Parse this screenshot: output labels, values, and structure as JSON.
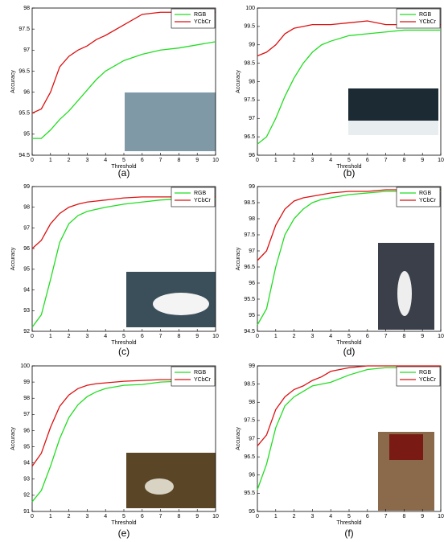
{
  "chart_data": [
    {
      "type": "line",
      "caption": "(a)",
      "xlabel": "Threshold",
      "ylabel": "Accuracy",
      "legend": "upper right",
      "x": [
        0,
        0.5,
        1,
        1.5,
        2,
        2.5,
        3,
        3.5,
        4,
        5,
        6,
        7,
        8,
        10
      ],
      "xlim": [
        0,
        10
      ],
      "xticks": [
        0,
        1,
        2,
        3,
        4,
        5,
        6,
        7,
        8,
        9,
        10
      ],
      "ylim": [
        94.5,
        98
      ],
      "yticks": [
        94.5,
        95,
        95.5,
        96,
        96.5,
        97,
        97.5,
        98
      ],
      "series": [
        {
          "name": "RGB",
          "color": "#22dd22",
          "values": [
            94.9,
            94.9,
            95.1,
            95.35,
            95.55,
            95.8,
            96.05,
            96.3,
            96.5,
            96.75,
            96.9,
            97.0,
            97.05,
            97.2
          ]
        },
        {
          "name": "YCbCr",
          "color": "#dd1111",
          "values": [
            95.5,
            95.6,
            96.0,
            96.6,
            96.85,
            97.0,
            97.1,
            97.25,
            97.35,
            97.6,
            97.85,
            97.9,
            97.9,
            97.9
          ]
        }
      ]
    },
    {
      "type": "line",
      "caption": "(b)",
      "xlabel": "Threshold",
      "ylabel": "Accuracy",
      "legend": "upper right",
      "x": [
        0,
        0.5,
        1,
        1.5,
        2,
        2.5,
        3,
        3.5,
        4,
        5,
        6,
        7,
        8,
        10
      ],
      "xlim": [
        0,
        10
      ],
      "xticks": [
        0,
        1,
        2,
        3,
        4,
        5,
        6,
        7,
        8,
        9,
        10
      ],
      "ylim": [
        96,
        100
      ],
      "yticks": [
        96,
        96.5,
        97,
        97.5,
        98,
        98.5,
        99,
        99.5,
        100
      ],
      "series": [
        {
          "name": "RGB",
          "color": "#22dd22",
          "values": [
            96.3,
            96.5,
            97.0,
            97.6,
            98.1,
            98.5,
            98.8,
            99.0,
            99.1,
            99.25,
            99.3,
            99.35,
            99.4,
            99.4
          ]
        },
        {
          "name": "YCbCr",
          "color": "#dd1111",
          "values": [
            98.7,
            98.8,
            99.0,
            99.3,
            99.45,
            99.5,
            99.55,
            99.55,
            99.55,
            99.6,
            99.65,
            99.55,
            99.55,
            99.55
          ]
        }
      ]
    },
    {
      "type": "line",
      "caption": "(c)",
      "xlabel": "Threshold",
      "ylabel": "Accuracy",
      "legend": "upper right",
      "x": [
        0,
        0.5,
        1,
        1.5,
        2,
        2.5,
        3,
        3.5,
        4,
        5,
        6,
        7,
        8,
        10
      ],
      "xlim": [
        0,
        10
      ],
      "xticks": [
        0,
        1,
        2,
        3,
        4,
        5,
        6,
        7,
        8,
        9,
        10
      ],
      "ylim": [
        92,
        99
      ],
      "yticks": [
        92,
        93,
        94,
        95,
        96,
        97,
        98,
        99
      ],
      "series": [
        {
          "name": "RGB",
          "color": "#22dd22",
          "values": [
            92.2,
            92.8,
            94.5,
            96.3,
            97.2,
            97.6,
            97.8,
            97.9,
            98.0,
            98.15,
            98.25,
            98.35,
            98.4,
            98.4
          ]
        },
        {
          "name": "YCbCr",
          "color": "#dd1111",
          "values": [
            96.0,
            96.4,
            97.2,
            97.7,
            98.0,
            98.15,
            98.25,
            98.3,
            98.35,
            98.45,
            98.5,
            98.5,
            98.5,
            98.5
          ]
        }
      ]
    },
    {
      "type": "line",
      "caption": "(d)",
      "xlabel": "Threshold",
      "ylabel": "Accuracy",
      "legend": "upper right",
      "x": [
        0,
        0.5,
        1,
        1.5,
        2,
        2.5,
        3,
        3.5,
        4,
        5,
        6,
        7,
        8,
        10
      ],
      "xlim": [
        0,
        10
      ],
      "xticks": [
        0,
        1,
        2,
        3,
        4,
        5,
        6,
        7,
        8,
        9,
        10
      ],
      "ylim": [
        94.5,
        99
      ],
      "yticks": [
        94.5,
        95,
        95.5,
        96,
        96.5,
        97,
        97.5,
        98,
        98.5,
        99
      ],
      "series": [
        {
          "name": "RGB",
          "color": "#22dd22",
          "values": [
            94.7,
            95.2,
            96.5,
            97.5,
            98.0,
            98.3,
            98.5,
            98.6,
            98.65,
            98.75,
            98.8,
            98.85,
            98.85,
            98.85
          ]
        },
        {
          "name": "YCbCr",
          "color": "#dd1111",
          "values": [
            96.7,
            97.0,
            97.8,
            98.3,
            98.55,
            98.65,
            98.7,
            98.75,
            98.8,
            98.85,
            98.85,
            98.9,
            98.9,
            98.9
          ]
        }
      ]
    },
    {
      "type": "line",
      "caption": "(e)",
      "xlabel": "Threshold",
      "ylabel": "Accuracy",
      "legend": "upper right",
      "x": [
        0,
        0.5,
        1,
        1.5,
        2,
        2.5,
        3,
        3.5,
        4,
        5,
        6,
        7,
        8,
        10
      ],
      "xlim": [
        0,
        10
      ],
      "xticks": [
        0,
        1,
        2,
        3,
        4,
        5,
        6,
        7,
        8,
        9,
        10
      ],
      "ylim": [
        91,
        100
      ],
      "yticks": [
        91,
        92,
        93,
        94,
        95,
        96,
        97,
        98,
        99,
        100
      ],
      "series": [
        {
          "name": "RGB",
          "color": "#22dd22",
          "values": [
            91.6,
            92.3,
            93.8,
            95.5,
            96.8,
            97.6,
            98.1,
            98.4,
            98.6,
            98.8,
            98.85,
            99.0,
            99.05,
            99.1
          ]
        },
        {
          "name": "YCbCr",
          "color": "#dd1111",
          "values": [
            93.8,
            94.6,
            96.2,
            97.5,
            98.2,
            98.6,
            98.8,
            98.9,
            98.95,
            99.05,
            99.1,
            99.15,
            99.15,
            99.15
          ]
        }
      ]
    },
    {
      "type": "line",
      "caption": "(f)",
      "xlabel": "Threshold",
      "ylabel": "Accuracy",
      "legend": "upper right",
      "x": [
        0,
        0.5,
        1,
        1.5,
        2,
        2.5,
        3,
        3.5,
        4,
        5,
        6,
        7,
        8,
        10
      ],
      "xlim": [
        0,
        10
      ],
      "xticks": [
        0,
        1,
        2,
        3,
        4,
        5,
        6,
        7,
        8,
        9,
        10
      ],
      "ylim": [
        95,
        99
      ],
      "yticks": [
        95,
        95.5,
        96,
        96.5,
        97,
        97.5,
        98,
        98.5,
        99
      ],
      "series": [
        {
          "name": "RGB",
          "color": "#22dd22",
          "values": [
            95.6,
            96.3,
            97.3,
            97.9,
            98.15,
            98.3,
            98.45,
            98.5,
            98.55,
            98.75,
            98.9,
            98.95,
            98.95,
            98.95
          ]
        },
        {
          "name": "YCbCr",
          "color": "#dd1111",
          "values": [
            96.8,
            97.1,
            97.8,
            98.15,
            98.35,
            98.45,
            98.6,
            98.7,
            98.85,
            98.95,
            99.0,
            99.0,
            99.0,
            99.0
          ]
        }
      ]
    }
  ]
}
